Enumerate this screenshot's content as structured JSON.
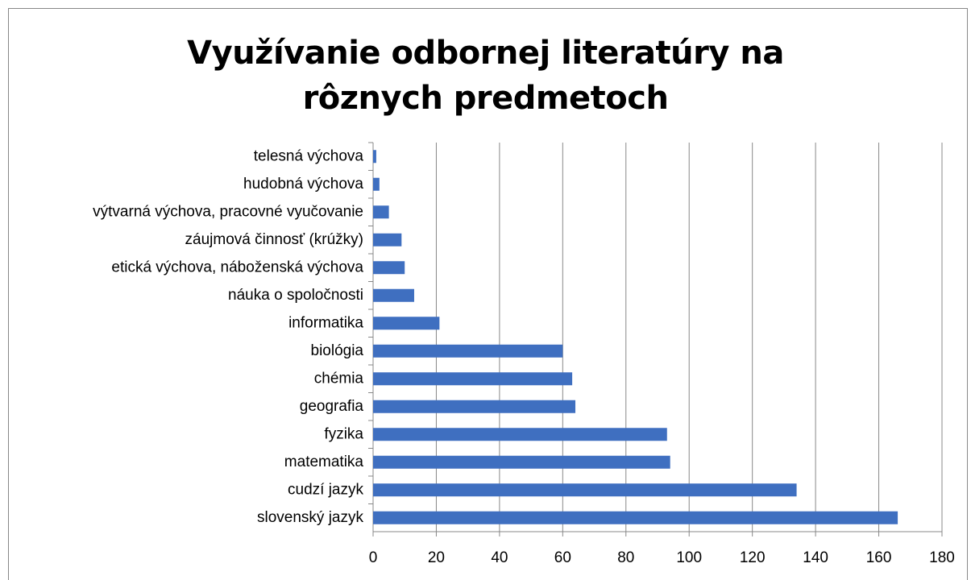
{
  "chart_data": {
    "type": "bar",
    "orientation": "horizontal",
    "title": "Využívanie odbornej literatúry na rôznych predmetoch",
    "categories": [
      "telesná výchova",
      "hudobná výchova",
      "výtvarná výchova, pracovné vyučovanie",
      "záujmová činnosť (krúžky)",
      "etická výchova, náboženská výchova",
      "náuka o spoločnosti",
      "informatika",
      "biológia",
      "chémia",
      "geografia",
      "fyzika",
      "matematika",
      "cudzí jazyk",
      "slovenský jazyk"
    ],
    "values": [
      1,
      2,
      5,
      9,
      10,
      13,
      21,
      60,
      63,
      64,
      93,
      94,
      134,
      166
    ],
    "color": "#3f6fc0",
    "xlim": [
      0,
      180
    ],
    "xticks": [
      0,
      20,
      40,
      60,
      80,
      100,
      120,
      140,
      160,
      180
    ],
    "grid": true
  }
}
